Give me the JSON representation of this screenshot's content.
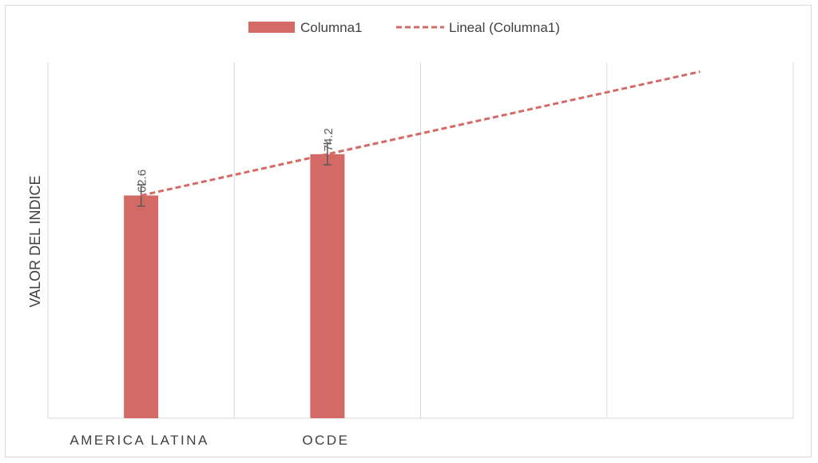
{
  "chart_data": {
    "type": "bar",
    "categories": [
      "AMERICA LATINA",
      "OCDE",
      "",
      ""
    ],
    "series": [
      {
        "name": "Columna1",
        "values": [
          62.6,
          74.2,
          null,
          null
        ],
        "color": "#d46a66",
        "error_bars": [
          6,
          6,
          null,
          null
        ]
      }
    ],
    "trendline": {
      "name": "Lineal (Columna1)",
      "type": "linear",
      "color": "#d46a66",
      "dashed": true,
      "x_index_range": [
        0,
        3
      ]
    },
    "data_labels": [
      "62.6",
      "74.2"
    ],
    "xlabel": "",
    "ylabel": "VALOR DEL INDICE",
    "ylim": [
      0,
      100
    ],
    "y_ticks_visible": false,
    "grid": "vertical",
    "legend_position": "top"
  }
}
